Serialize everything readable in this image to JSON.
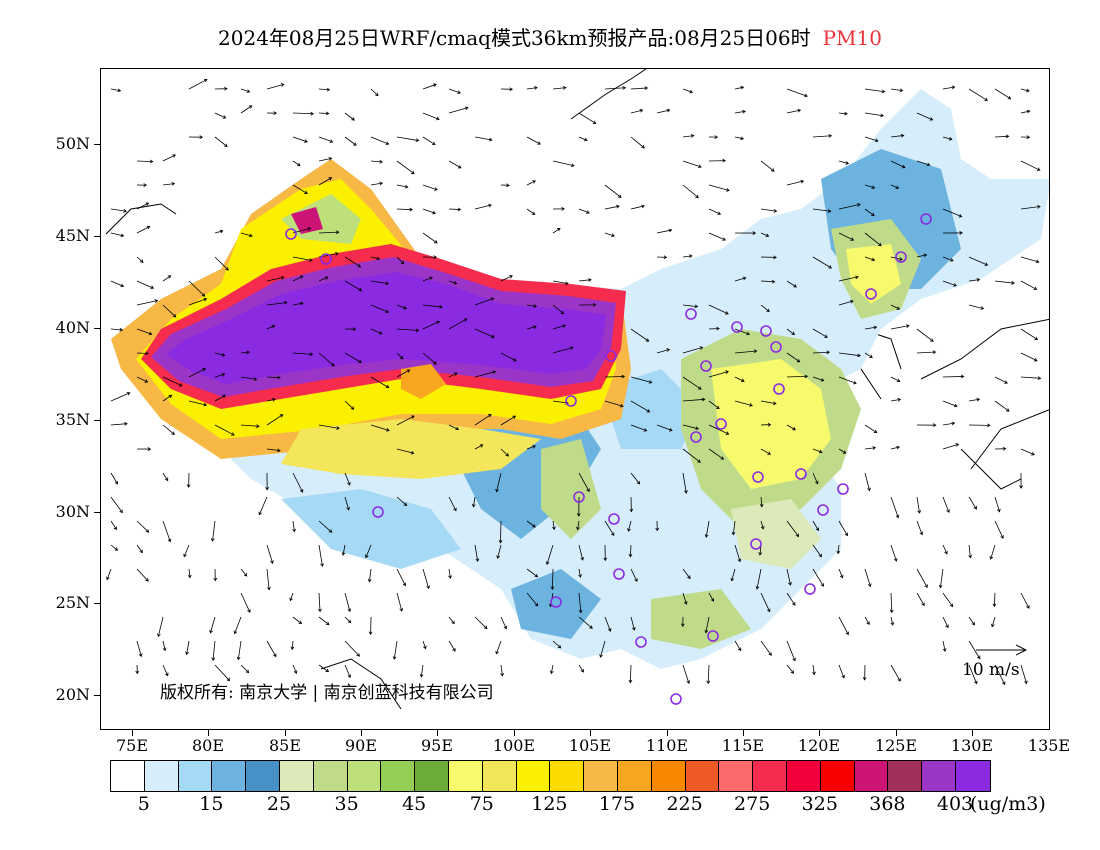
{
  "title": {
    "main": "2024年08月25日WRF/cmaq模式36km预报产品:08月25日06时",
    "pollutant": "PM10",
    "pollutant_color": "#e8343b"
  },
  "axes": {
    "lat_labels": [
      "50N",
      "45N",
      "40N",
      "35N",
      "30N",
      "25N",
      "20N"
    ],
    "lon_labels": [
      "75E",
      "80E",
      "85E",
      "90E",
      "95E",
      "100E",
      "105E",
      "110E",
      "115E",
      "120E",
      "125E",
      "130E",
      "135E"
    ]
  },
  "copyright": "版权所有: 南京大学 | 南京创蓝科技有限公司",
  "vector_reference": "10 m/s",
  "colorbar": {
    "colors": [
      "#ffffff",
      "#d6eefb",
      "#a6d9f5",
      "#6db3e0",
      "#4691c8",
      "#dde9b8",
      "#bfdb8a",
      "#bde07a",
      "#93cf55",
      "#6bab38",
      "#f6fa6c",
      "#f4e65a",
      "#fbf000",
      "#fbdc00",
      "#f8b846",
      "#f8a620",
      "#f88800",
      "#ed5a28",
      "#fb6b6b",
      "#f52c4e",
      "#f2003c",
      "#fb0000",
      "#cc1477",
      "#a3305a",
      "#9b35c8",
      "#8a2be2"
    ],
    "tick_labels": [
      "5",
      "15",
      "25",
      "35",
      "45",
      "75",
      "125",
      "175",
      "225",
      "275",
      "325",
      "368",
      "403"
    ],
    "unit": "(ug/m3)"
  }
}
